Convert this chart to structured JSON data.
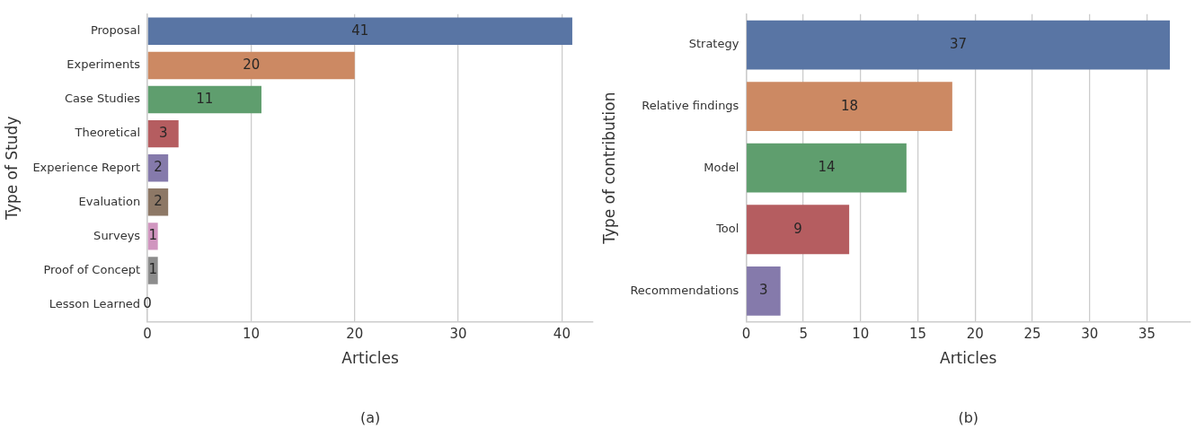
{
  "chart_data": [
    {
      "type": "bar",
      "orientation": "horizontal",
      "xlabel": "Articles",
      "ylabel": "Type of Study",
      "categories": [
        "Proposal",
        "Experiments",
        "Case Studies",
        "Theoretical",
        "Experience Report",
        "Evaluation",
        "Surveys",
        "Proof of Concept",
        "Lesson Learned"
      ],
      "values": [
        41,
        20,
        11,
        3,
        2,
        2,
        1,
        1,
        0
      ],
      "colors": [
        "#5975a4",
        "#cc8963",
        "#5f9e6e",
        "#b55d60",
        "#857aab",
        "#8d7866",
        "#d095bf",
        "#8c8c8c",
        "#c1b37f"
      ],
      "xlim": [
        0,
        43
      ],
      "xticks": [
        0,
        10,
        20,
        30,
        40
      ],
      "grid": "x",
      "data_labels": true,
      "annotations": [
        "(a)"
      ]
    },
    {
      "type": "bar",
      "orientation": "horizontal",
      "xlabel": "Articles",
      "ylabel": "Type of contribution",
      "categories": [
        "Strategy",
        "Relative findings",
        "Model",
        "Tool",
        "Recommendations"
      ],
      "values": [
        37,
        18,
        14,
        9,
        3
      ],
      "colors": [
        "#5975a4",
        "#cc8963",
        "#5f9e6e",
        "#b55d60",
        "#857aab"
      ],
      "xlim": [
        0,
        38.8
      ],
      "xticks": [
        0,
        5,
        10,
        15,
        20,
        25,
        30,
        35
      ],
      "grid": "x",
      "data_labels": true,
      "annotations": [
        "(b)"
      ]
    }
  ]
}
